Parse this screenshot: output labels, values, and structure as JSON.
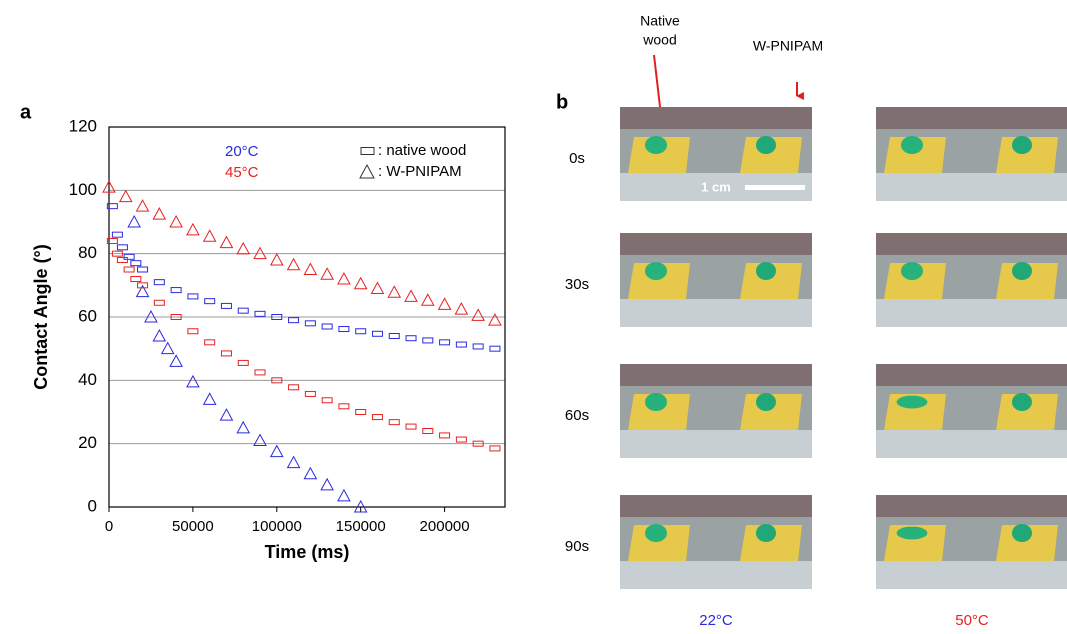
{
  "chart_data": {
    "type": "scatter",
    "label": "a",
    "x_label": "Time (ms)",
    "y_label": "Contact Angle (°)",
    "xlim": [
      0,
      236000
    ],
    "xticks": [
      0,
      50000,
      100000,
      150000,
      200000
    ],
    "ylim": [
      0,
      120
    ],
    "yticks": [
      0,
      20,
      40,
      60,
      80,
      100,
      120
    ],
    "grid": true,
    "temperatures": [
      {
        "label": "20°C",
        "color": "#2a2ae0"
      },
      {
        "label": "45°C",
        "color": "#e82020"
      }
    ],
    "markers": [
      {
        "shape": "rect",
        "label": ": native wood"
      },
      {
        "shape": "triangle",
        "label": ": W-PNIPAM"
      }
    ],
    "series": [
      {
        "temperature": 0,
        "marker": 0,
        "color": "#2a2ae0",
        "x": [
          2000,
          5000,
          8000,
          12000,
          16000,
          20000,
          30000,
          40000,
          50000,
          60000,
          70000,
          80000,
          90000,
          100000,
          110000,
          120000,
          130000,
          140000,
          150000,
          160000,
          170000,
          180000,
          190000,
          200000,
          210000,
          220000,
          230000
        ],
        "values": [
          95,
          86,
          82,
          79,
          77,
          75,
          71,
          68.5,
          66.5,
          65,
          63.5,
          62,
          61,
          60,
          59,
          58,
          57,
          56.2,
          55.5,
          54.7,
          54,
          53.3,
          52.6,
          52,
          51.3,
          50.7,
          50
        ]
      },
      {
        "temperature": 0,
        "marker": 1,
        "color": "#2a2ae0",
        "x": [
          15000,
          20000,
          25000,
          30000,
          35000,
          40000,
          50000,
          60000,
          70000,
          80000,
          90000,
          100000,
          110000,
          120000,
          130000,
          140000,
          150000
        ],
        "values": [
          90,
          68,
          60,
          54,
          50,
          46,
          39.5,
          34,
          29,
          25,
          21,
          17.5,
          14,
          10.5,
          7,
          3.5,
          0
        ]
      },
      {
        "temperature": 1,
        "marker": 0,
        "color": "#e82020",
        "x": [
          2000,
          5000,
          8000,
          12000,
          16000,
          20000,
          30000,
          40000,
          50000,
          60000,
          70000,
          80000,
          90000,
          100000,
          110000,
          120000,
          130000,
          140000,
          150000,
          160000,
          170000,
          180000,
          190000,
          200000,
          210000,
          220000,
          230000
        ],
        "values": [
          84,
          80,
          78,
          75,
          72,
          70,
          64.5,
          60,
          55.5,
          52,
          48.5,
          45.5,
          42.5,
          40,
          37.8,
          35.7,
          33.7,
          31.8,
          30,
          28.4,
          26.8,
          25.4,
          24,
          22.6,
          21.3,
          20,
          18.5
        ]
      },
      {
        "temperature": 1,
        "marker": 1,
        "color": "#e82020",
        "x": [
          0,
          10000,
          20000,
          30000,
          40000,
          50000,
          60000,
          70000,
          80000,
          90000,
          100000,
          110000,
          120000,
          130000,
          140000,
          150000,
          160000,
          170000,
          180000,
          190000,
          200000,
          210000,
          220000,
          230000
        ],
        "values": [
          101,
          98,
          95,
          92.5,
          90,
          87.5,
          85.5,
          83.5,
          81.5,
          80,
          78,
          76.5,
          75,
          73.5,
          72,
          70.5,
          69,
          67.8,
          66.5,
          65.3,
          64,
          62.5,
          60.5,
          59
        ]
      }
    ]
  },
  "panel_b": {
    "label": "b",
    "native_wood_label": [
      "Native",
      "wood"
    ],
    "w_pnipam_label": "W-PNIPAM",
    "scale_bar": "1 cm",
    "times": [
      "0s",
      "30s",
      "60s",
      "90s"
    ],
    "conditions": [
      {
        "label": "22°C",
        "color": "#2a2ae0"
      },
      {
        "label": "50°C",
        "color": "#e82020"
      }
    ]
  }
}
